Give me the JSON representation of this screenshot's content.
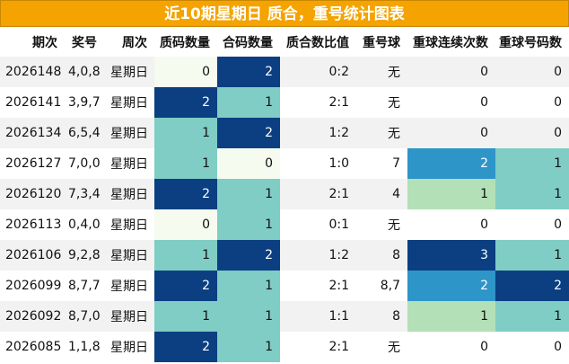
{
  "title": "近10期星期日 质合，重号统计图表",
  "columns": [
    "期次",
    "奖号",
    "周次",
    "质码数量",
    "合码数量",
    "质合数比值",
    "重号球",
    "重球连续次数",
    "重球号码数"
  ],
  "rows": [
    {
      "issue": "2026148",
      "nums": "4,0,8",
      "week": "星期日",
      "prime": "0",
      "composite": "2",
      "ratio": "0:2",
      "repeat": "无",
      "consec": "0",
      "repeat_count": "0"
    },
    {
      "issue": "2026141",
      "nums": "3,9,7",
      "week": "星期日",
      "prime": "2",
      "composite": "1",
      "ratio": "2:1",
      "repeat": "无",
      "consec": "0",
      "repeat_count": "0"
    },
    {
      "issue": "2026134",
      "nums": "6,5,4",
      "week": "星期日",
      "prime": "1",
      "composite": "2",
      "ratio": "1:2",
      "repeat": "无",
      "consec": "0",
      "repeat_count": "0"
    },
    {
      "issue": "2026127",
      "nums": "7,0,0",
      "week": "星期日",
      "prime": "1",
      "composite": "0",
      "ratio": "1:0",
      "repeat": "7",
      "consec": "2",
      "repeat_count": "1"
    },
    {
      "issue": "2026120",
      "nums": "7,3,4",
      "week": "星期日",
      "prime": "2",
      "composite": "1",
      "ratio": "2:1",
      "repeat": "4",
      "consec": "1",
      "repeat_count": "1"
    },
    {
      "issue": "2026113",
      "nums": "0,4,0",
      "week": "星期日",
      "prime": "0",
      "composite": "1",
      "ratio": "0:1",
      "repeat": "无",
      "consec": "0",
      "repeat_count": "0"
    },
    {
      "issue": "2026106",
      "nums": "9,2,8",
      "week": "星期日",
      "prime": "1",
      "composite": "2",
      "ratio": "1:2",
      "repeat": "8",
      "consec": "3",
      "repeat_count": "1"
    },
    {
      "issue": "2026099",
      "nums": "8,7,7",
      "week": "星期日",
      "prime": "2",
      "composite": "1",
      "ratio": "2:1",
      "repeat": "8,7",
      "consec": "2",
      "repeat_count": "2"
    },
    {
      "issue": "2026092",
      "nums": "8,7,0",
      "week": "星期日",
      "prime": "1",
      "composite": "1",
      "ratio": "1:1",
      "repeat": "8",
      "consec": "1",
      "repeat_count": "1"
    },
    {
      "issue": "2026085",
      "nums": "1,1,8",
      "week": "星期日",
      "prime": "2",
      "composite": "1",
      "ratio": "2:1",
      "repeat": "无",
      "consec": "0",
      "repeat_count": "0"
    }
  ],
  "heat_colors": {
    "dark": "#0b3f82",
    "mid": "#2e95c9",
    "teal": "#7fcdc4",
    "light": "#b3e0b6",
    "pale": "#f6fbf0",
    "title_bg": "#f4a300"
  }
}
